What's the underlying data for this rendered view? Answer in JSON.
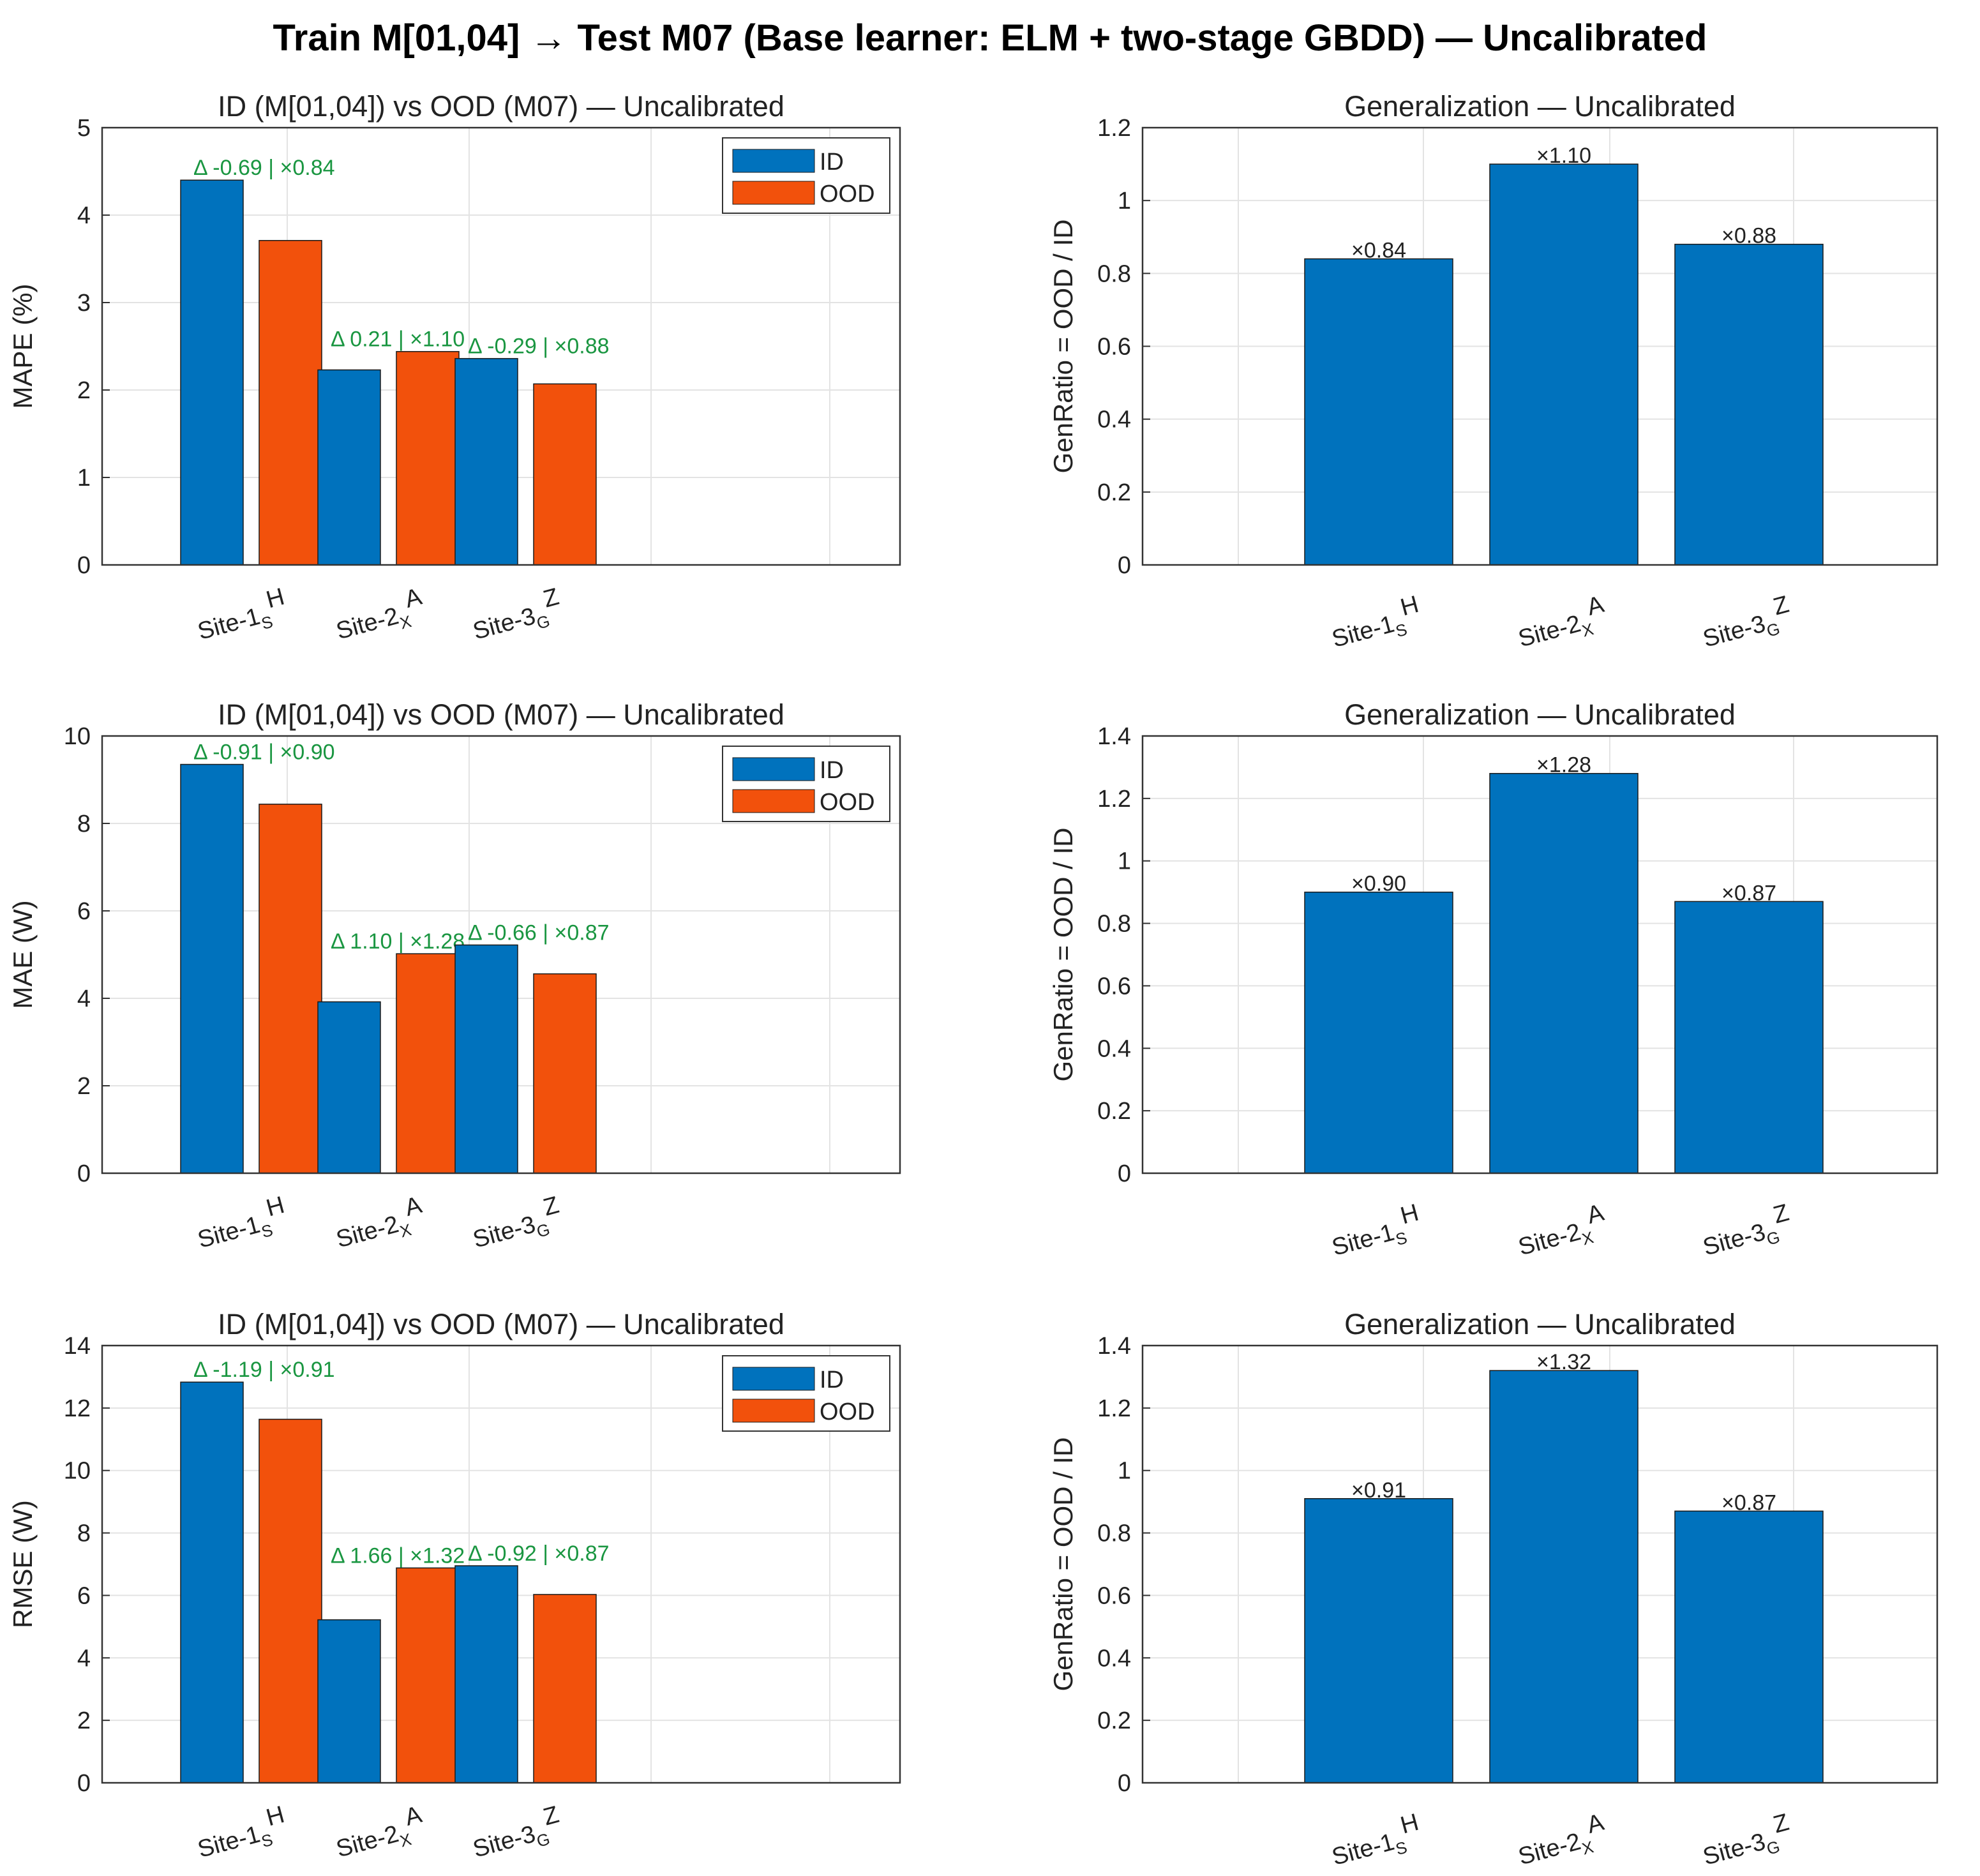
{
  "title": "Train M[01,04] → Test M07  (Base learner: ELM + two-stage GBDD) — Uncalibrated",
  "colors": {
    "id": "#0072BD",
    "ood": "#F2510C",
    "ratio": "#0072BD",
    "delta_text": "#1a9641",
    "grid": "#e3e3e3"
  },
  "legend": {
    "id": "ID",
    "ood": "OOD"
  },
  "categories": [
    {
      "base": "Site-1",
      "sub": "S",
      "sup": "H"
    },
    {
      "base": "Site-2",
      "sub": "X",
      "sup": "A"
    },
    {
      "base": "Site-3",
      "sub": "G",
      "sup": "Z"
    }
  ],
  "chart_data": [
    {
      "type": "bar",
      "title": "ID (M[01,04]) vs OOD (M07) — Uncalibrated",
      "ylabel": "MAPE (%)",
      "ylim": [
        0,
        5
      ],
      "yticks": [
        "0",
        "1",
        "2",
        "3",
        "4",
        "5"
      ],
      "categories": [
        "Site-1SH",
        "Site-2XA",
        "Site-3GZ"
      ],
      "series": [
        {
          "name": "ID",
          "values": [
            4.4,
            2.23,
            2.36
          ]
        },
        {
          "name": "OOD",
          "values": [
            3.71,
            2.44,
            2.07
          ]
        }
      ],
      "annotations": [
        "Δ -0.69 | ×0.84",
        "Δ 0.21 | ×1.10",
        "Δ -0.29 | ×0.88"
      ],
      "legend_position": "top-right",
      "grid": true
    },
    {
      "type": "bar",
      "title": "Generalization — Uncalibrated",
      "ylabel": "GenRatio = OOD / ID",
      "ylim": [
        0,
        1.2
      ],
      "yticks": [
        "0",
        "0.2",
        "0.4",
        "0.6",
        "0.8",
        "1",
        "1.2"
      ],
      "categories": [
        "Site-1SH",
        "Site-2XA",
        "Site-3GZ"
      ],
      "values": [
        0.84,
        1.1,
        0.88
      ],
      "annotations": [
        "×0.84",
        "×1.10",
        "×0.88"
      ],
      "grid": true
    },
    {
      "type": "bar",
      "title": "ID (M[01,04]) vs OOD (M07) — Uncalibrated",
      "ylabel": "MAE (W)",
      "ylim": [
        0,
        10
      ],
      "yticks": [
        "0",
        "2",
        "4",
        "6",
        "8",
        "10"
      ],
      "categories": [
        "Site-1SH",
        "Site-2XA",
        "Site-3GZ"
      ],
      "series": [
        {
          "name": "ID",
          "values": [
            9.35,
            3.92,
            5.22
          ]
        },
        {
          "name": "OOD",
          "values": [
            8.44,
            5.02,
            4.56
          ]
        }
      ],
      "annotations": [
        "Δ -0.91 | ×0.90",
        "Δ 1.10 | ×1.28",
        "Δ -0.66 | ×0.87"
      ],
      "legend_position": "top-right",
      "grid": true
    },
    {
      "type": "bar",
      "title": "Generalization — Uncalibrated",
      "ylabel": "GenRatio = OOD / ID",
      "ylim": [
        0,
        1.4
      ],
      "yticks": [
        "0",
        "0.2",
        "0.4",
        "0.6",
        "0.8",
        "1",
        "1.2",
        "1.4"
      ],
      "categories": [
        "Site-1SH",
        "Site-2XA",
        "Site-3GZ"
      ],
      "values": [
        0.9,
        1.28,
        0.87
      ],
      "annotations": [
        "×0.90",
        "×1.28",
        "×0.87"
      ],
      "grid": true
    },
    {
      "type": "bar",
      "title": "ID (M[01,04]) vs OOD (M07) — Uncalibrated",
      "ylabel": "RMSE (W)",
      "ylim": [
        0,
        14
      ],
      "yticks": [
        "0",
        "2",
        "4",
        "6",
        "8",
        "10",
        "12",
        "14"
      ],
      "categories": [
        "Site-1SH",
        "Site-2XA",
        "Site-3GZ"
      ],
      "series": [
        {
          "name": "ID",
          "values": [
            12.83,
            5.22,
            6.95
          ]
        },
        {
          "name": "OOD",
          "values": [
            11.64,
            6.88,
            6.03
          ]
        }
      ],
      "annotations": [
        "Δ -1.19 | ×0.91",
        "Δ 1.66 | ×1.32",
        "Δ -0.92 | ×0.87"
      ],
      "legend_position": "top-right",
      "grid": true
    },
    {
      "type": "bar",
      "title": "Generalization — Uncalibrated",
      "ylabel": "GenRatio = OOD / ID",
      "ylim": [
        0,
        1.4
      ],
      "yticks": [
        "0",
        "0.2",
        "0.4",
        "0.6",
        "0.8",
        "1",
        "1.2",
        "1.4"
      ],
      "categories": [
        "Site-1SH",
        "Site-2XA",
        "Site-3GZ"
      ],
      "values": [
        0.91,
        1.32,
        0.87
      ],
      "annotations": [
        "×0.91",
        "×1.32",
        "×0.87"
      ],
      "grid": true
    }
  ]
}
